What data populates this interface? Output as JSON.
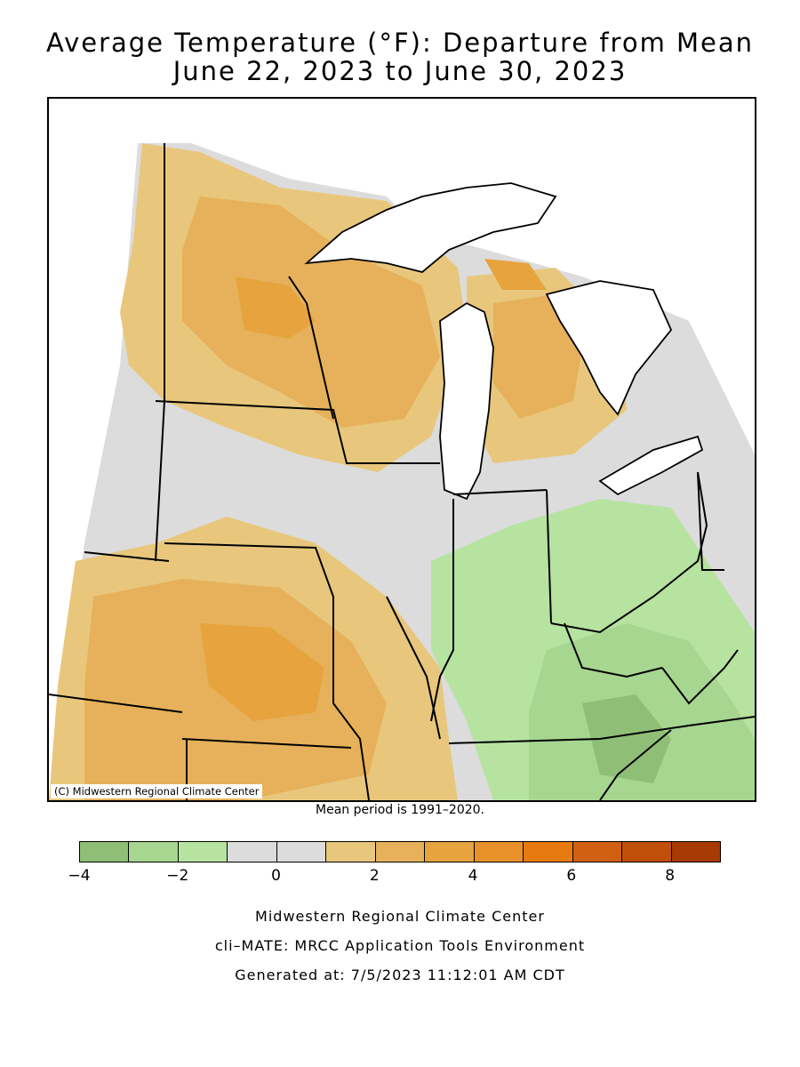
{
  "title_line1": "Average Temperature (°F): Departure from Mean",
  "title_line2": "June 22, 2023 to June 30, 2023",
  "map_credit": "(C) Midwestern Regional Climate Center",
  "mean_period_note": "Mean period is 1991–2020.",
  "legend": {
    "tick_labels": [
      "−4",
      "−2",
      "0",
      "2",
      "4",
      "6",
      "8"
    ],
    "colors": [
      "#8fbf76",
      "#a6d68f",
      "#b6e3a0",
      "#dcdcdc",
      "#dcdcdc",
      "#e8c77d",
      "#e6b15a",
      "#e6a33e",
      "#e8912a",
      "#e87b10",
      "#d06010",
      "#c04f0a",
      "#a83a05"
    ]
  },
  "region_colors": {
    "neutral": "#dcdcdc",
    "warm_1": "#e8c77d",
    "warm_2": "#e6b15a",
    "warm_3": "#e6a33e",
    "warm_4": "#e08a22",
    "cool_1": "#b6e3a0",
    "cool_2": "#a6d68f",
    "cool_3": "#8fbf76",
    "water": "#ffffff"
  },
  "footer": {
    "line1": "Midwestern Regional Climate Center",
    "line2": "cli–MATE: MRCC Application Tools Environment",
    "line3": "Generated at: 7/5/2023 11:12:01 AM CDT"
  }
}
